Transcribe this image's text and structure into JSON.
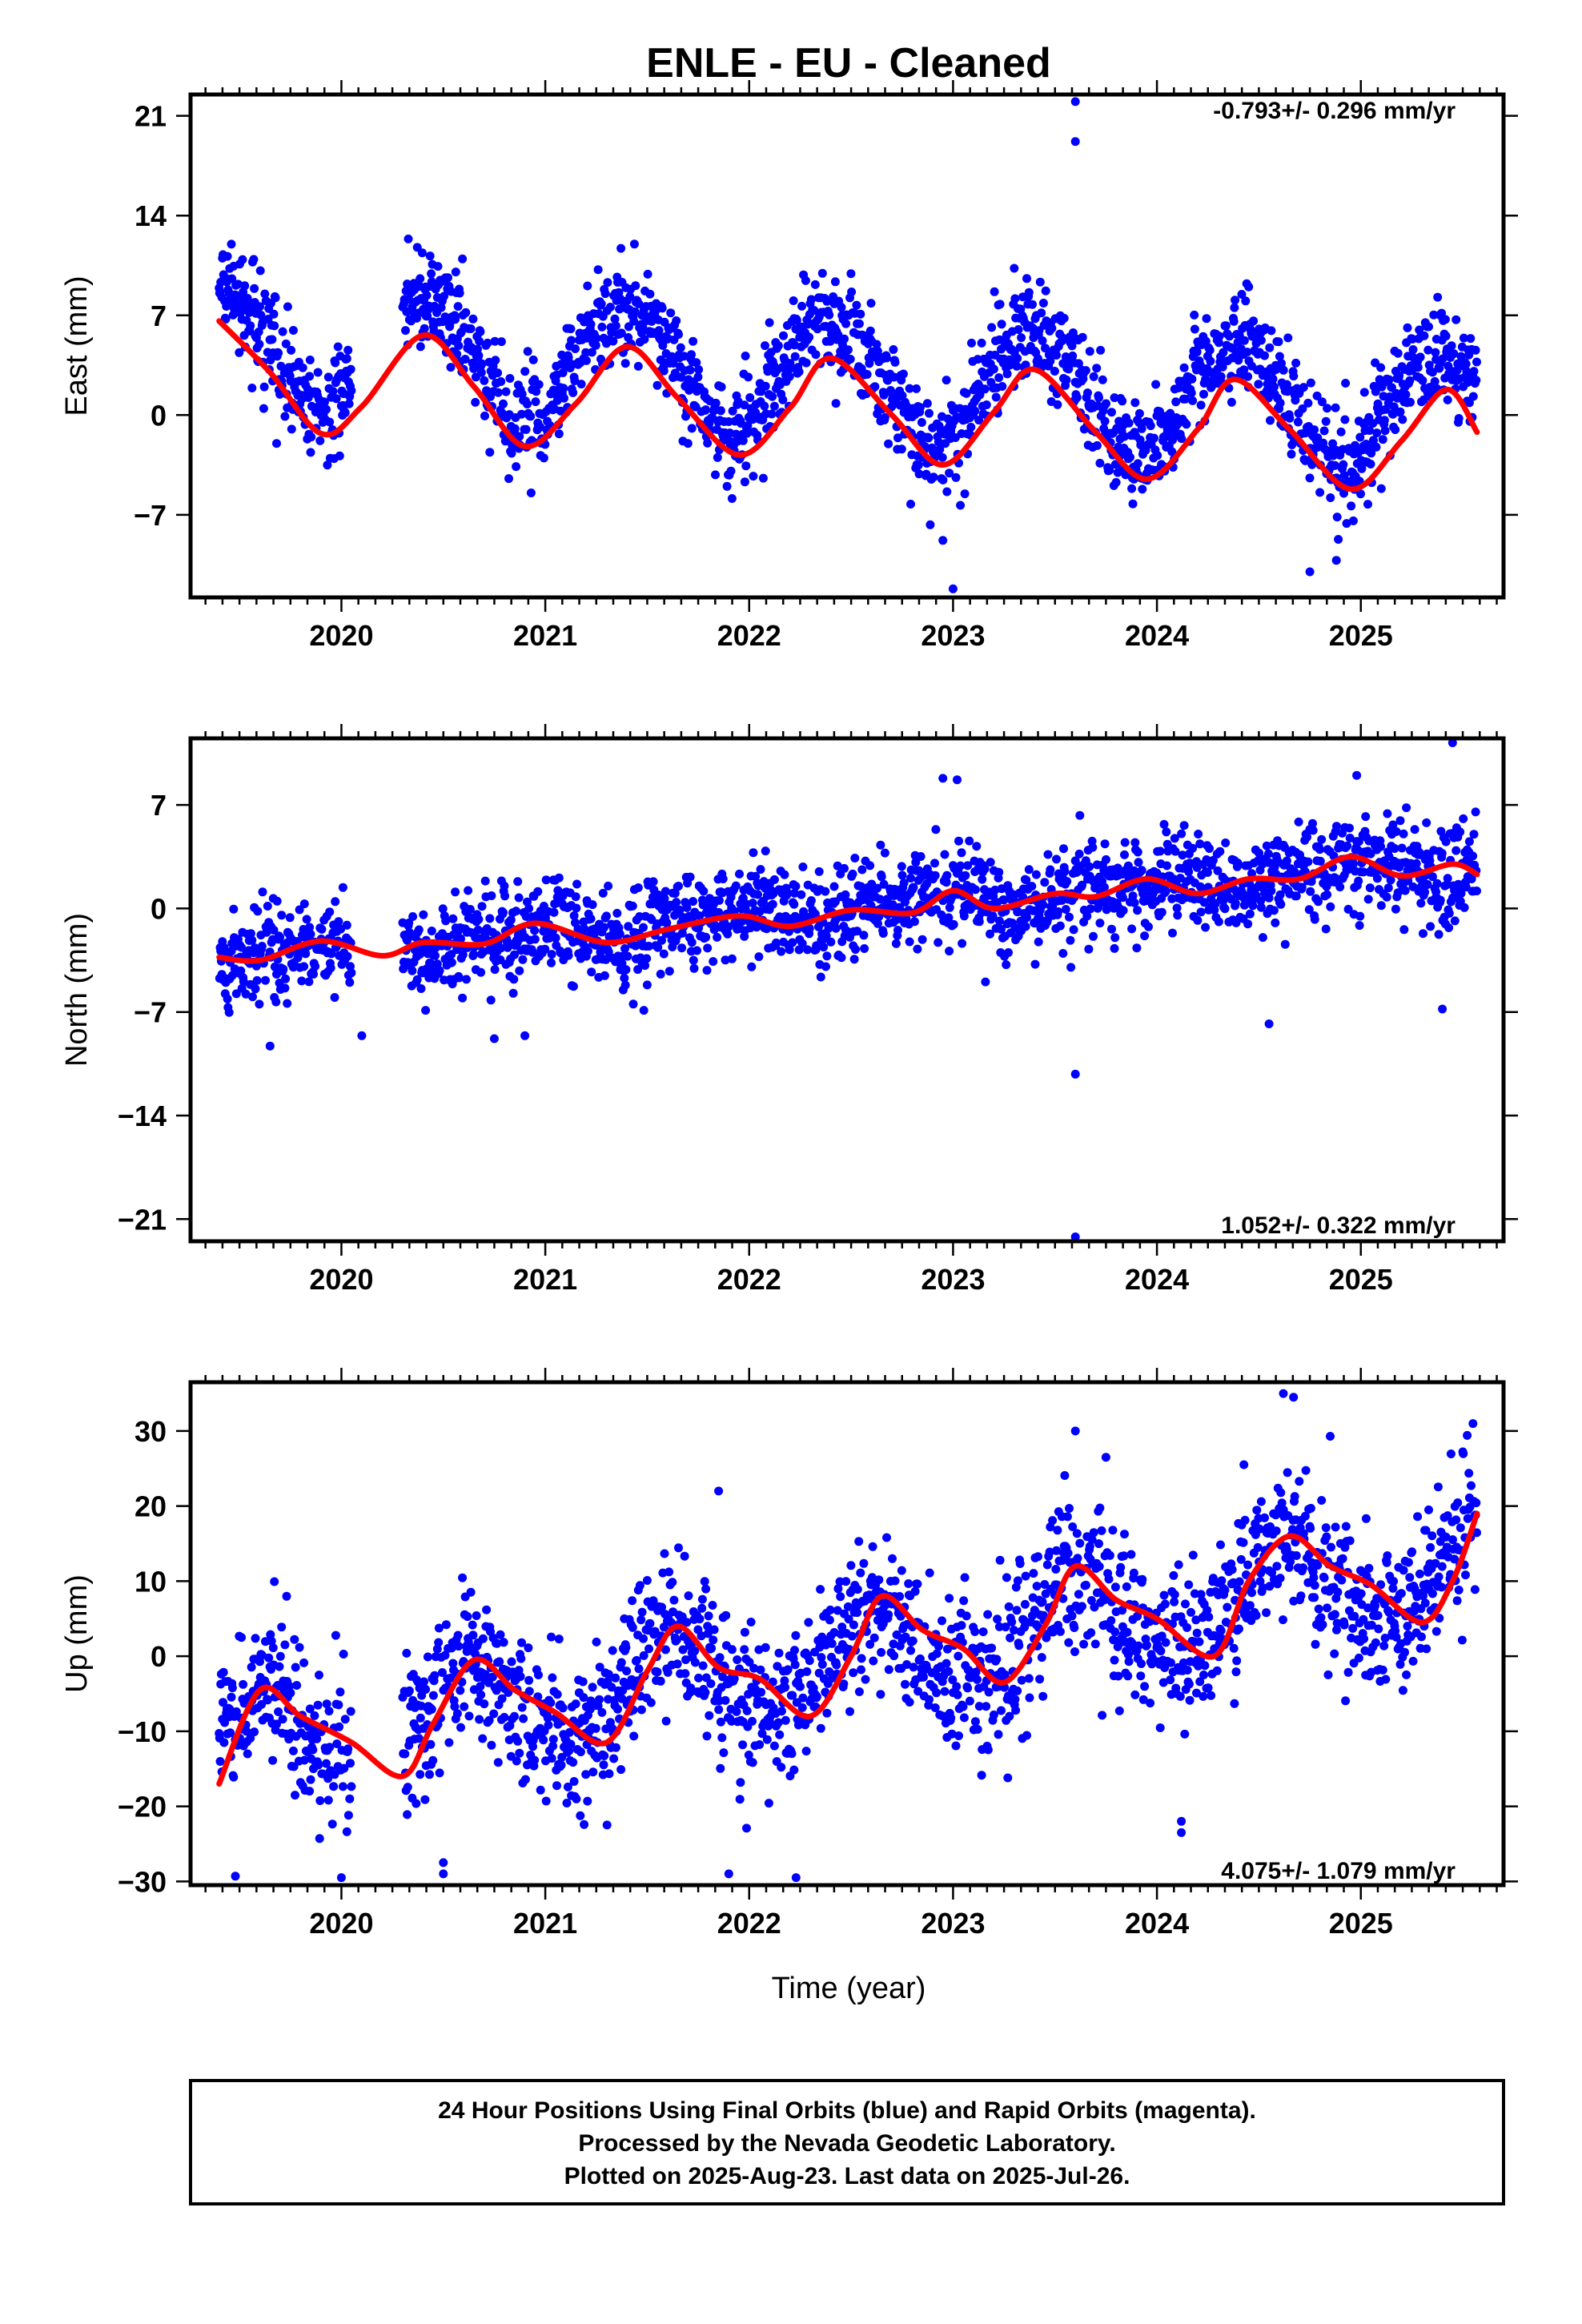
{
  "title": "ENLE  - EU - Cleaned",
  "xlabel": "Time (year)",
  "footer_lines": [
    "24 Hour Positions Using Final Orbits (blue) and Rapid Orbits (magenta).",
    "Processed by the Nevada Geodetic Laboratory.",
    "Plotted on 2025-Aug-23. Last data on 2025-Jul-26."
  ],
  "colors": {
    "points": "#0000ff",
    "fit": "#ff0000",
    "frame": "#000000"
  },
  "chart_data": [
    {
      "type": "scatter",
      "component": "east",
      "ylabel": "East (mm)",
      "rate_label": "-0.793+/- 0.296 mm/yr",
      "xlim": [
        2019.26,
        2025.7
      ],
      "ylim": [
        -12.8,
        22.5
      ],
      "yticks": [
        -7,
        0,
        7,
        14,
        21
      ],
      "xticks": [
        2020,
        2021,
        2022,
        2023,
        2024,
        2025
      ],
      "data_range": [
        2019.4,
        2025.57
      ],
      "gap": [
        2020.05,
        2020.3
      ],
      "trend": {
        "offset": 2.6,
        "rate": -0.793,
        "ref": 2022.5
      },
      "seasonal": [
        {
          "amp": 4.1,
          "phase_peak": 0.4
        },
        {
          "amp": 0.3,
          "phase_peak": 0.2
        }
      ],
      "scatter_sd": 1.8,
      "outliers": [
        [
          2023.6,
          22.0
        ],
        [
          2023.6,
          19.2
        ],
        [
          2023.0,
          -12.2
        ],
        [
          2023.3,
          10.3
        ],
        [
          2024.75,
          -11.0
        ],
        [
          2024.88,
          -10.2
        ],
        [
          2022.95,
          -8.8
        ],
        [
          2024.45,
          9.0
        ]
      ],
      "fit_points": [
        [
          2019.4,
          6.6
        ],
        [
          2019.65,
          3.0
        ],
        [
          2019.9,
          -1.3
        ],
        [
          2020.1,
          0.6
        ],
        [
          2020.4,
          5.6
        ],
        [
          2020.65,
          2.0
        ],
        [
          2020.9,
          -2.2
        ],
        [
          2021.15,
          0.8
        ],
        [
          2021.4,
          4.8
        ],
        [
          2021.65,
          1.2
        ],
        [
          2021.95,
          -2.8
        ],
        [
          2022.2,
          0.5
        ],
        [
          2022.4,
          4.0
        ],
        [
          2022.7,
          0.0
        ],
        [
          2022.95,
          -3.5
        ],
        [
          2023.2,
          0.2
        ],
        [
          2023.4,
          3.2
        ],
        [
          2023.7,
          -1.2
        ],
        [
          2023.95,
          -4.5
        ],
        [
          2024.2,
          -1.0
        ],
        [
          2024.38,
          2.5
        ],
        [
          2024.65,
          -1.0
        ],
        [
          2024.95,
          -5.2
        ],
        [
          2025.2,
          -1.8
        ],
        [
          2025.42,
          1.8
        ],
        [
          2025.57,
          -1.2
        ]
      ]
    },
    {
      "type": "scatter",
      "component": "north",
      "ylabel": "North (mm)",
      "rate_label": "1.052+/- 0.322 mm/yr",
      "xlim": [
        2019.26,
        2025.7
      ],
      "ylim": [
        -22.5,
        11.5
      ],
      "yticks": [
        -21,
        -14,
        -7,
        0,
        7
      ],
      "xticks": [
        2020,
        2021,
        2022,
        2023,
        2024,
        2025
      ],
      "data_range": [
        2019.4,
        2025.57
      ],
      "gap": [
        2020.05,
        2020.3
      ],
      "trend": {
        "offset": -0.1,
        "rate": 1.052,
        "ref": 2022.5
      },
      "seasonal": [
        {
          "amp": 0.6,
          "phase_peak": 0.9
        },
        {
          "amp": 0.3,
          "phase_peak": 0.1
        }
      ],
      "scatter_sd": 1.6,
      "outliers": [
        [
          2025.45,
          11.2
        ],
        [
          2023.6,
          -11.2
        ],
        [
          2023.6,
          -22.2
        ],
        [
          2024.55,
          -7.8
        ],
        [
          2025.4,
          -6.8
        ],
        [
          2019.65,
          -9.3
        ],
        [
          2020.1,
          -8.6
        ],
        [
          2020.75,
          -8.8
        ],
        [
          2020.9,
          -8.6
        ],
        [
          2022.95,
          8.8
        ],
        [
          2023.02,
          8.7
        ],
        [
          2024.98,
          9.0
        ]
      ],
      "fit_points": [
        [
          2019.4,
          -3.3
        ],
        [
          2019.6,
          -3.5
        ],
        [
          2019.9,
          -2.2
        ],
        [
          2020.2,
          -3.2
        ],
        [
          2020.4,
          -2.3
        ],
        [
          2020.7,
          -2.4
        ],
        [
          2020.95,
          -1.0
        ],
        [
          2021.3,
          -2.3
        ],
        [
          2021.6,
          -1.4
        ],
        [
          2021.95,
          -0.5
        ],
        [
          2022.2,
          -1.2
        ],
        [
          2022.5,
          -0.1
        ],
        [
          2022.8,
          -0.3
        ],
        [
          2023.0,
          1.2
        ],
        [
          2023.2,
          0.0
        ],
        [
          2023.5,
          1.0
        ],
        [
          2023.7,
          0.8
        ],
        [
          2023.95,
          2.0
        ],
        [
          2024.2,
          1.0
        ],
        [
          2024.45,
          2.0
        ],
        [
          2024.7,
          2.0
        ],
        [
          2024.95,
          3.5
        ],
        [
          2025.2,
          2.2
        ],
        [
          2025.45,
          3.0
        ],
        [
          2025.57,
          2.3
        ]
      ]
    },
    {
      "type": "scatter",
      "component": "up",
      "ylabel": "Up (mm)",
      "rate_label": "4.075+/- 1.079 mm/yr",
      "xlim": [
        2019.26,
        2025.7
      ],
      "ylim": [
        -30.5,
        36.5
      ],
      "yticks": [
        -30,
        -20,
        -10,
        0,
        10,
        20,
        30
      ],
      "xticks": [
        2020,
        2021,
        2022,
        2023,
        2024,
        2025
      ],
      "data_range": [
        2019.4,
        2025.57
      ],
      "gap": [
        2020.05,
        2020.3
      ],
      "trend": {
        "offset": 0.0,
        "rate": 4.075,
        "ref": 2022.5
      },
      "seasonal": [
        {
          "amp": 6.0,
          "phase_peak": 0.62
        },
        {
          "amp": 0.8,
          "phase_peak": 0.1
        }
      ],
      "scatter_sd": 5.0,
      "outliers": [
        [
          2023.6,
          30.0
        ],
        [
          2024.67,
          34.5
        ],
        [
          2024.62,
          35.0
        ],
        [
          2025.55,
          31.0
        ],
        [
          2019.48,
          -29.3
        ],
        [
          2020.0,
          -29.5
        ],
        [
          2021.9,
          -29.0
        ],
        [
          2022.23,
          -29.5
        ],
        [
          2024.12,
          -22.0
        ],
        [
          2024.12,
          -23.5
        ],
        [
          2020.5,
          -27.5
        ],
        [
          2020.5,
          -29.0
        ],
        [
          2024.85,
          29.3
        ],
        [
          2021.85,
          22.0
        ],
        [
          2023.75,
          26.5
        ]
      ],
      "fit_points": [
        [
          2019.4,
          -17.0
        ],
        [
          2019.6,
          -4.5
        ],
        [
          2019.8,
          -8.0
        ],
        [
          2020.05,
          -11.5
        ],
        [
          2020.3,
          -16.0
        ],
        [
          2020.45,
          -9.0
        ],
        [
          2020.65,
          -0.5
        ],
        [
          2020.85,
          -4.5
        ],
        [
          2021.05,
          -7.5
        ],
        [
          2021.3,
          -11.5
        ],
        [
          2021.5,
          -2.0
        ],
        [
          2021.65,
          4.0
        ],
        [
          2021.85,
          -1.5
        ],
        [
          2022.05,
          -3.0
        ],
        [
          2022.3,
          -8.0
        ],
        [
          2022.5,
          0.0
        ],
        [
          2022.65,
          8.0
        ],
        [
          2022.85,
          3.5
        ],
        [
          2023.05,
          1.0
        ],
        [
          2023.25,
          -3.5
        ],
        [
          2023.45,
          4.0
        ],
        [
          2023.6,
          12.0
        ],
        [
          2023.8,
          7.5
        ],
        [
          2024.0,
          5.0
        ],
        [
          2024.28,
          0.0
        ],
        [
          2024.45,
          10.0
        ],
        [
          2024.65,
          16.0
        ],
        [
          2024.85,
          12.0
        ],
        [
          2025.05,
          9.5
        ],
        [
          2025.3,
          4.5
        ],
        [
          2025.45,
          10.0
        ],
        [
          2025.57,
          19.0
        ]
      ]
    }
  ]
}
